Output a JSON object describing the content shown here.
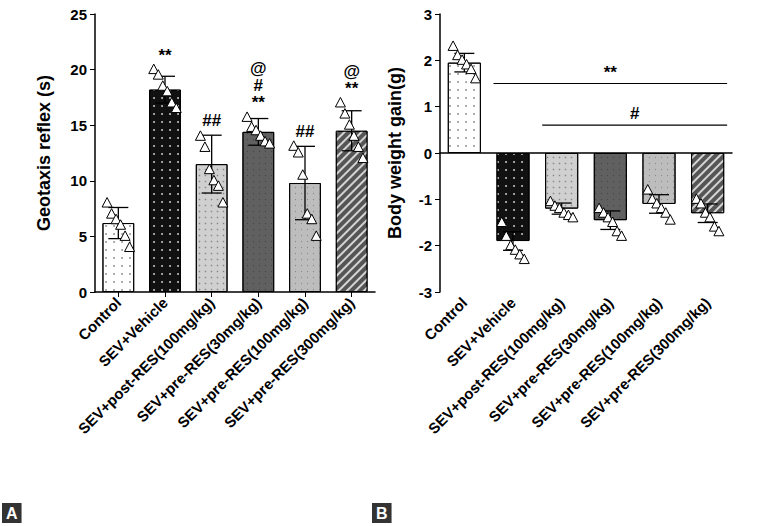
{
  "chart_data": [
    {
      "type": "bar",
      "title": "A",
      "y_label": "Geotaxis reflex (s)",
      "categories": [
        "Control",
        "SEV+Vehicle",
        "SEV+post-RES(100mg/kg)",
        "SEV+pre-RES(30mg/kg)",
        "SEV+pre-RES(100mg/kg)",
        "SEV+pre-RES(300mg/kg)"
      ],
      "values": [
        6.2,
        18.2,
        11.5,
        14.4,
        9.8,
        14.5
      ],
      "errors": [
        1.4,
        1.2,
        2.6,
        1.2,
        3.3,
        1.8
      ],
      "points": [
        [
          8.0,
          7.0,
          6.5,
          6.0,
          5.0,
          4.0
        ],
        [
          20.0,
          19.5,
          18.5,
          18.0,
          17.0,
          16.5
        ],
        [
          14.0,
          13.0,
          11.0,
          10.0,
          9.5,
          8.0
        ],
        [
          15.7,
          14.8,
          14.5,
          14.0,
          13.5,
          13.3
        ],
        [
          13.1,
          12.5,
          10.5,
          7.0,
          6.5,
          5.0
        ],
        [
          17.0,
          16.0,
          15.0,
          14.0,
          13.0,
          12.0
        ]
      ],
      "colors": [
        "#ffffff",
        "#111111",
        "#d0d0d0",
        "#606060",
        "#bdbdbd",
        "#555555"
      ],
      "annotations": [
        [],
        [
          "**"
        ],
        [
          "##"
        ],
        [
          "@",
          "#",
          "**"
        ],
        [
          "##"
        ],
        [
          "@",
          "**"
        ]
      ],
      "ylim": [
        0,
        25
      ],
      "yticks": [
        0,
        5,
        10,
        15,
        20,
        25
      ],
      "grid": false
    },
    {
      "type": "bar",
      "title": "B",
      "y_label": "Body weight gain(g)",
      "categories": [
        "Control",
        "SEV+Vehicle",
        "SEV+post-RES(100mg/kg)",
        "SEV+pre-RES(30mg/kg)",
        "SEV+pre-RES(100mg/kg)",
        "SEV+pre-RES(300mg/kg)"
      ],
      "values": [
        1.95,
        -1.9,
        -1.2,
        -1.45,
        -1.1,
        -1.3
      ],
      "errors": [
        0.2,
        0.2,
        0.12,
        0.2,
        0.2,
        0.2
      ],
      "points": [
        [
          2.3,
          2.1,
          2.0,
          1.9,
          1.8,
          1.6
        ],
        [
          -1.5,
          -1.8,
          -2.0,
          -2.1,
          -2.2,
          -2.3
        ],
        [
          -1.05,
          -1.15,
          -1.2,
          -1.3,
          -1.35,
          -1.4
        ],
        [
          -1.2,
          -1.3,
          -1.4,
          -1.5,
          -1.7,
          -1.8
        ],
        [
          -0.8,
          -1.0,
          -1.1,
          -1.2,
          -1.3,
          -1.45
        ],
        [
          -1.0,
          -1.1,
          -1.3,
          -1.4,
          -1.6,
          -1.7
        ]
      ],
      "colors": [
        "#ffffff",
        "#111111",
        "#d0d0d0",
        "#606060",
        "#bdbdbd",
        "#555555"
      ],
      "brackets": [
        {
          "from": "SEV+Vehicle",
          "to": "SEV+pre-RES(300mg/kg)",
          "label": "**"
        },
        {
          "from": "SEV+post-RES(100mg/kg)",
          "to": "SEV+pre-RES(300mg/kg)",
          "label": "#"
        }
      ],
      "ylim": [
        -3,
        3
      ],
      "yticks": [
        -3,
        -2,
        -1,
        0,
        1,
        2,
        3
      ],
      "grid": false
    }
  ]
}
